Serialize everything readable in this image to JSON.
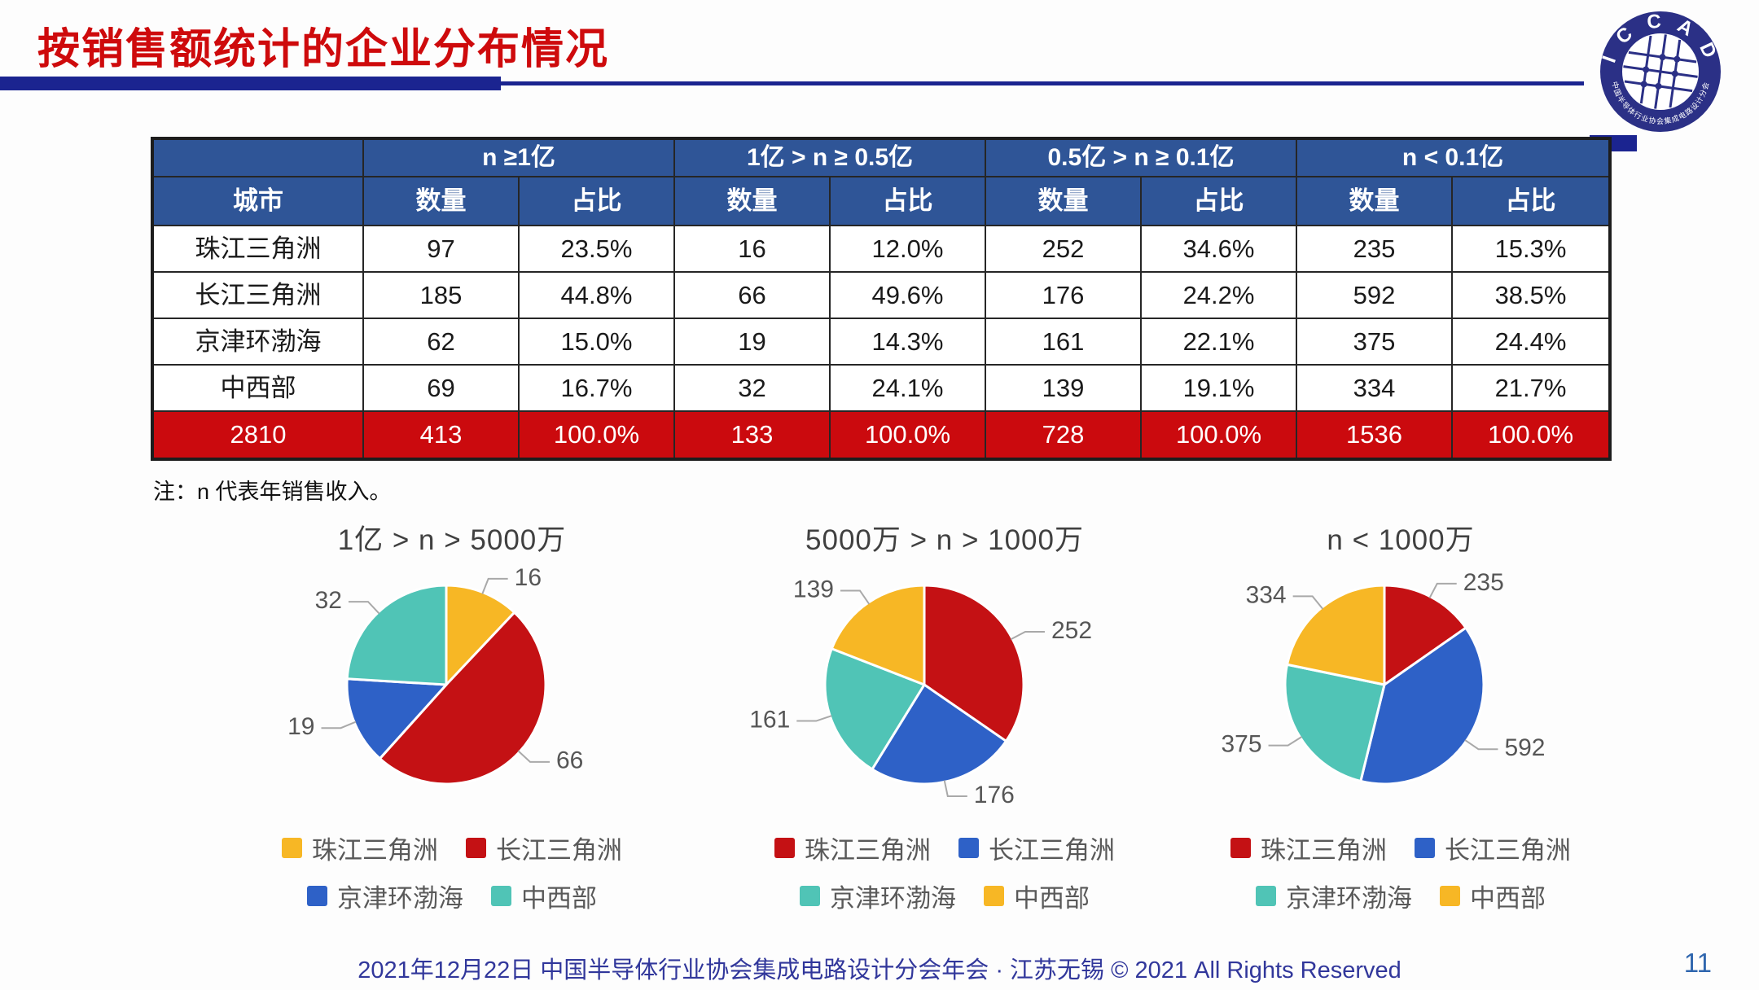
{
  "title": "按销售额统计的企业分布情况",
  "logo": {
    "name": "ICCAD",
    "arc_top": "I C C A D",
    "arc_bottom": "中国半导体行业协会集成电路设计分会"
  },
  "colors": {
    "title_red": "#ce0a0c",
    "rule_navy": "#1b2490",
    "header_blue": "#2f5597",
    "total_red": "#cb0a0e",
    "footer_navy": "#31379b",
    "page_blue": "#2f66ae"
  },
  "table": {
    "city_header": "城市",
    "group_headers": [
      "n ≥1亿",
      "1亿 > n ≥ 0.5亿",
      "0.5亿 > n ≥ 0.1亿",
      "n < 0.1亿"
    ],
    "sub_headers": [
      "数量",
      "占比"
    ],
    "rows": [
      {
        "city": "珠江三角洲",
        "cells": [
          "97",
          "23.5%",
          "16",
          "12.0%",
          "252",
          "34.6%",
          "235",
          "15.3%"
        ]
      },
      {
        "city": "长江三角洲",
        "cells": [
          "185",
          "44.8%",
          "66",
          "49.6%",
          "176",
          "24.2%",
          "592",
          "38.5%"
        ]
      },
      {
        "city": "京津环渤海",
        "cells": [
          "62",
          "15.0%",
          "19",
          "14.3%",
          "161",
          "22.1%",
          "375",
          "24.4%"
        ]
      },
      {
        "city": "中西部",
        "cells": [
          "69",
          "16.7%",
          "32",
          "24.1%",
          "139",
          "19.1%",
          "334",
          "21.7%"
        ]
      }
    ],
    "total_row": {
      "city": "2810",
      "cells": [
        "413",
        "100.0%",
        "133",
        "100.0%",
        "728",
        "100.0%",
        "1536",
        "100.0%"
      ]
    }
  },
  "note": "注：n 代表年销售收入。",
  "chart_data": [
    {
      "type": "pie",
      "title": "1亿 > n > 5000万",
      "labels": [
        "珠江三角洲",
        "长江三角洲",
        "京津环渤海",
        "中西部"
      ],
      "values": [
        16,
        66,
        19,
        32
      ],
      "colors": [
        "#f7b725",
        "#c41114",
        "#2e61c7",
        "#50c4b6"
      ],
      "total": 133,
      "legend_position": "bottom",
      "start_angle": "top, clockwise"
    },
    {
      "type": "pie",
      "title": "5000万 > n > 1000万",
      "labels": [
        "珠江三角洲",
        "长江三角洲",
        "京津环渤海",
        "中西部"
      ],
      "values": [
        252,
        176,
        161,
        139
      ],
      "colors": [
        "#c41114",
        "#2e61c7",
        "#50c4b6",
        "#f7b725"
      ],
      "total": 728,
      "legend_position": "bottom",
      "start_angle": "top, clockwise"
    },
    {
      "type": "pie",
      "title": "n < 1000万",
      "labels": [
        "珠江三角洲",
        "长江三角洲",
        "京津环渤海",
        "中西部"
      ],
      "values": [
        235,
        592,
        375,
        334
      ],
      "colors": [
        "#c41114",
        "#2e61c7",
        "#50c4b6",
        "#f7b725"
      ],
      "total": 1536,
      "legend_position": "bottom",
      "start_angle": "top, clockwise"
    }
  ],
  "footer": {
    "text": "2021年12月22日 中国半导体行业协会集成电路设计分会年会 · 江苏无锡 © 2021 All Rights Reserved",
    "page_number": "11"
  }
}
